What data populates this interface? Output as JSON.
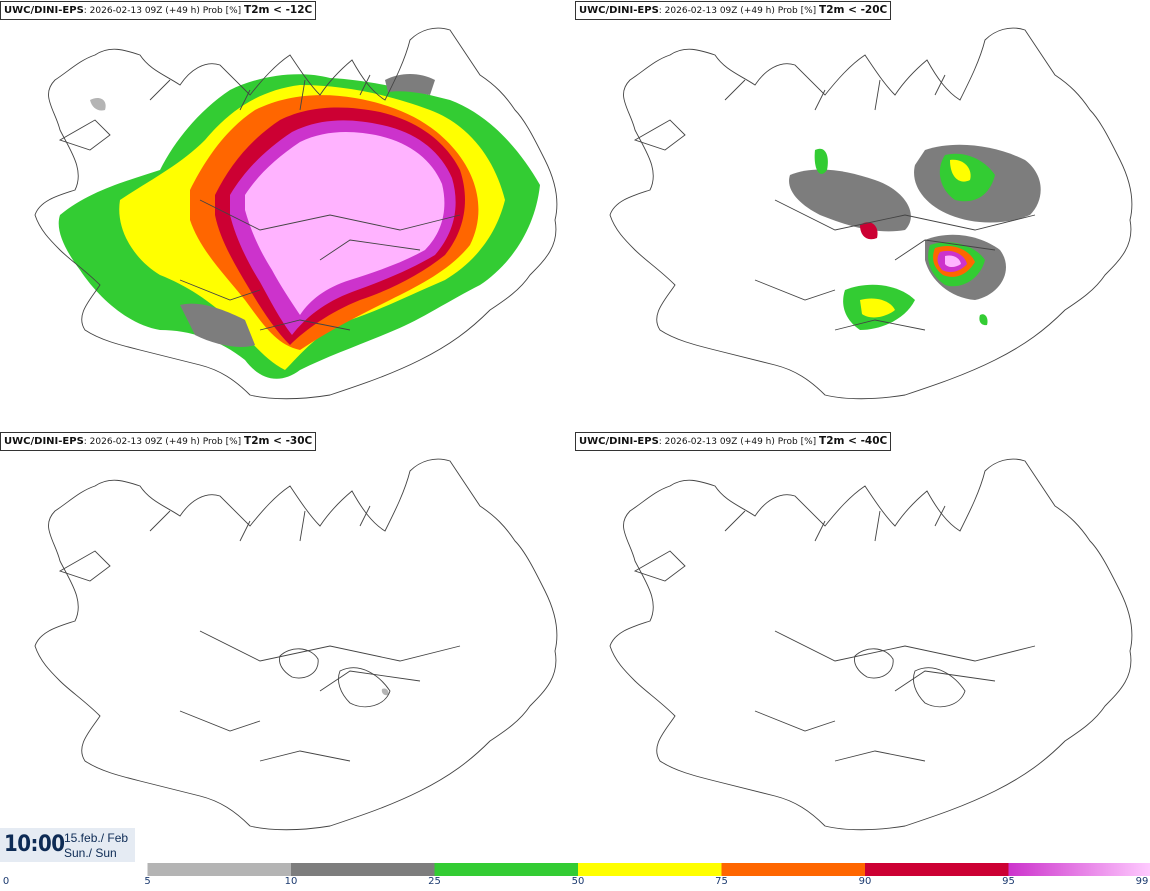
{
  "panels": [
    {
      "model": "UWC/DINI-EPS",
      "run": ": 2026-02-13 09Z (+49 h) Prob [%]",
      "threshold": "T2m < -12C"
    },
    {
      "model": "UWC/DINI-EPS",
      "run": ": 2026-02-13 09Z (+49 h) Prob [%]",
      "threshold": "T2m < -20C"
    },
    {
      "model": "UWC/DINI-EPS",
      "run": ": 2026-02-13 09Z (+49 h) Prob [%]",
      "threshold": "T2m < -30C"
    },
    {
      "model": "UWC/DINI-EPS",
      "run": ": 2026-02-13 09Z (+49 h) Prob [%]",
      "threshold": "T2m < -40C"
    }
  ],
  "valid_time": {
    "time": "10:00",
    "date": "15.feb./ Feb",
    "day": "Sun./ Sun"
  },
  "legend": {
    "labels": [
      "0",
      "5",
      "10",
      "25",
      "50",
      "75",
      "90",
      "95",
      "99"
    ],
    "bins": [
      {
        "from": 5,
        "to": 10,
        "color": "#b4b4b4"
      },
      {
        "from": 10,
        "to": 25,
        "color": "#7d7d7d"
      },
      {
        "from": 25,
        "to": 50,
        "color": "#33cc33"
      },
      {
        "from": 50,
        "to": 75,
        "color": "#ffff00"
      },
      {
        "from": 75,
        "to": 90,
        "color": "#ff6600"
      },
      {
        "from": 90,
        "to": 95,
        "color": "#cc0033"
      },
      {
        "from": 95,
        "to": 99,
        "color": "#cc33cc",
        "to_color": "#ffccff"
      }
    ]
  }
}
